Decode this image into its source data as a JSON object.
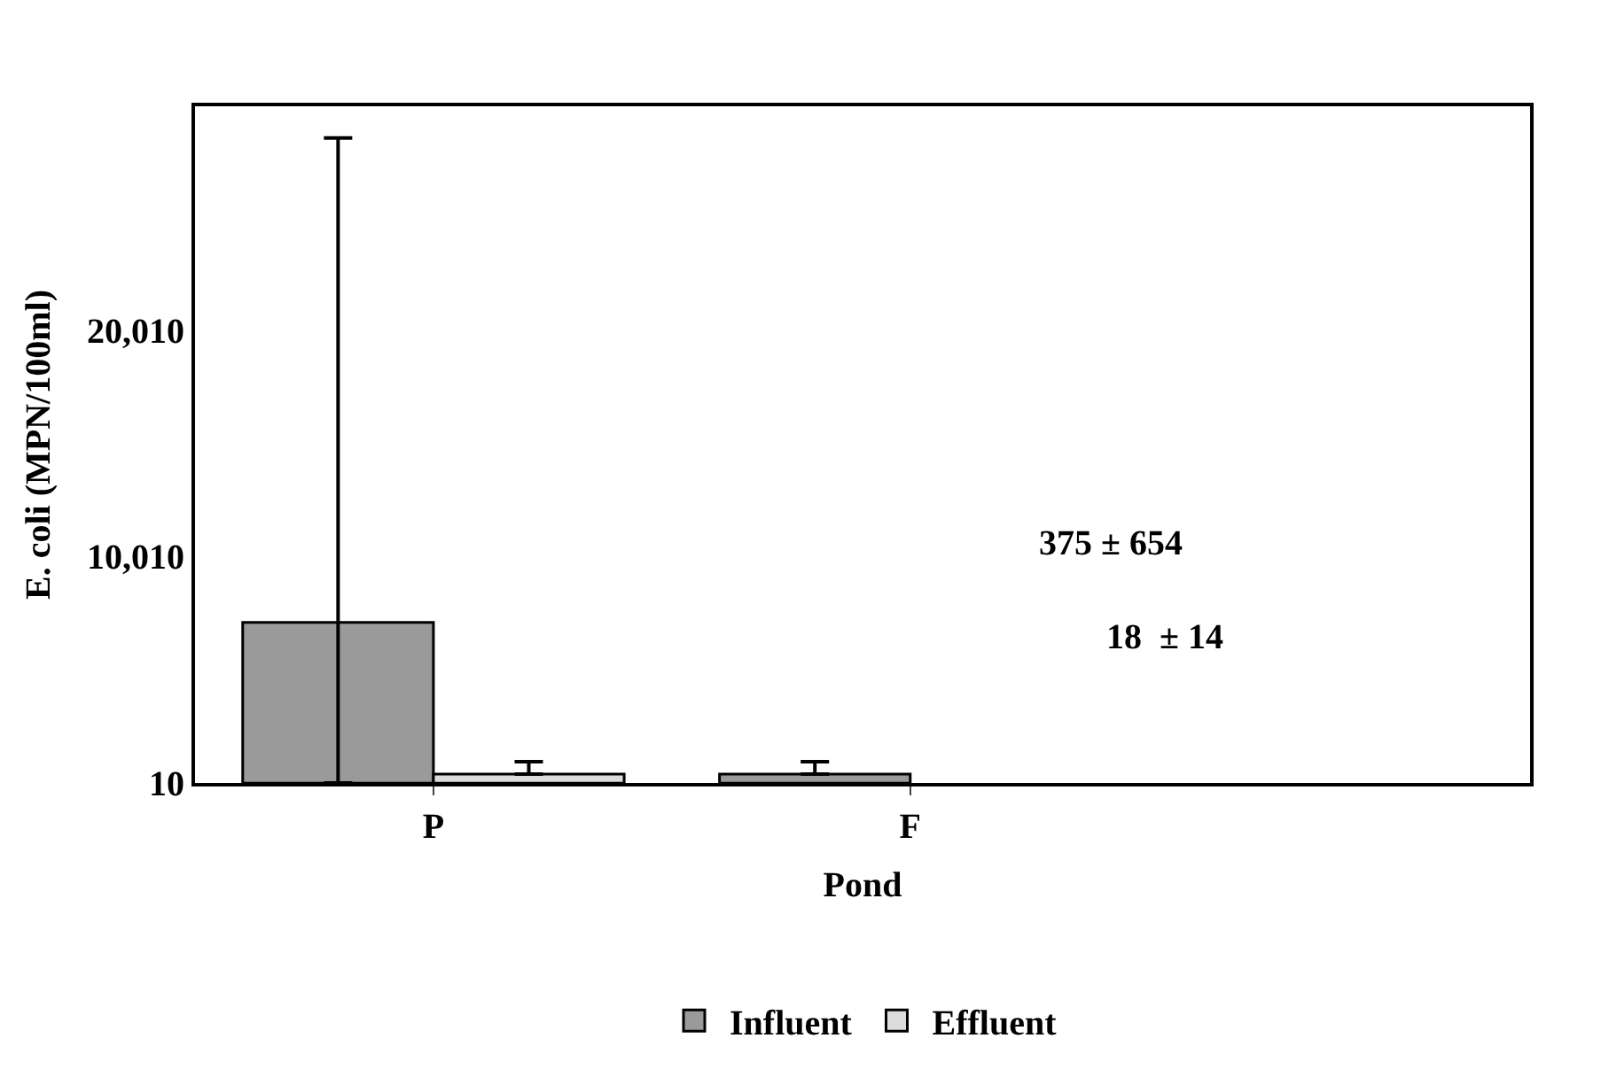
{
  "chart_data": {
    "type": "bar",
    "xlabel": "Pond",
    "ylabel": "E. coli (MPN/100ml)",
    "categories": [
      "P",
      "F"
    ],
    "series": [
      {
        "name": "Influent",
        "color": "#9a9a9a",
        "values": [
          7100,
          400
        ],
        "errors": [
          [
            10,
            28500
          ],
          [
            400,
            950
          ]
        ]
      },
      {
        "name": "Effluent",
        "color": "#dcdcdc",
        "values": [
          400,
          null
        ],
        "errors": [
          [
            400,
            950
          ],
          null
        ]
      }
    ],
    "ylim": [
      10,
      29900
    ],
    "yticks": [
      {
        "value": 10,
        "label": "10"
      },
      {
        "value": 10010,
        "label": "10,010"
      },
      {
        "value": 20010,
        "label": "20,010"
      }
    ],
    "annotations": [
      "375 ± 654",
      "18  ± 14"
    ],
    "legend": "bottom",
    "grid": false
  }
}
